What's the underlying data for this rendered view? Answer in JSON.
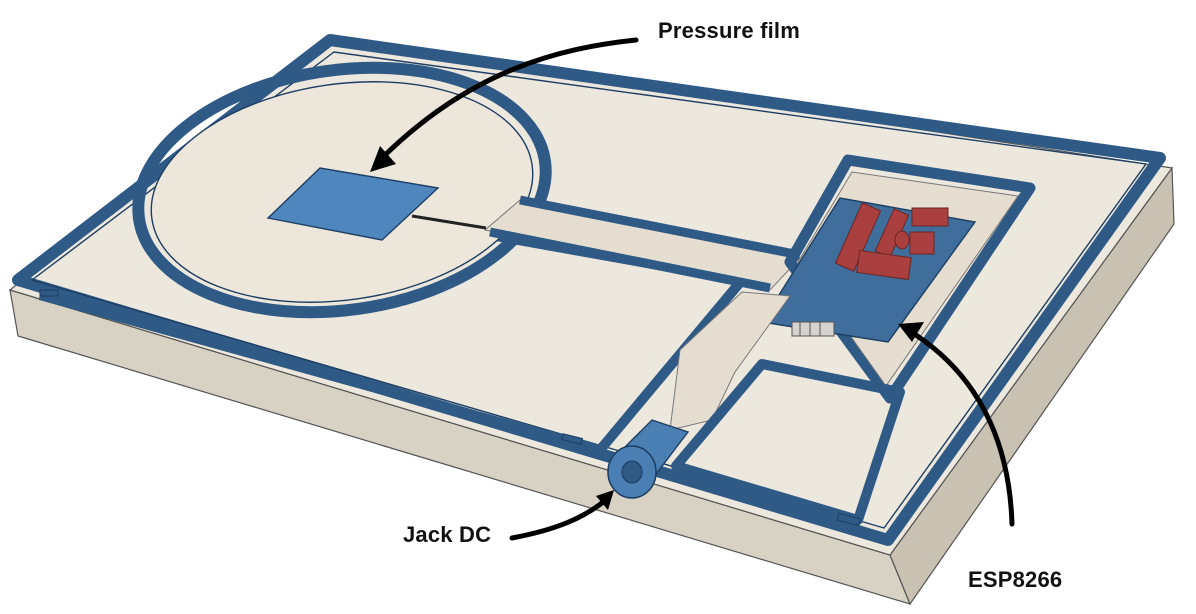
{
  "labels": {
    "pressure_film": "Pressure film",
    "jack_dc": "Jack DC",
    "esp8266": "ESP8266"
  },
  "colors": {
    "base": "#ede8de",
    "base_side": "#d8d2c4",
    "wall": "#2f5a86",
    "wall_dark": "#1e3f63",
    "inner_floor": "#ece6db",
    "sensor": "#4f86bd",
    "pcb": "#3f6e9c",
    "component": "#a9403f",
    "jack": "#4a7fb3",
    "arrow": "#000000"
  }
}
